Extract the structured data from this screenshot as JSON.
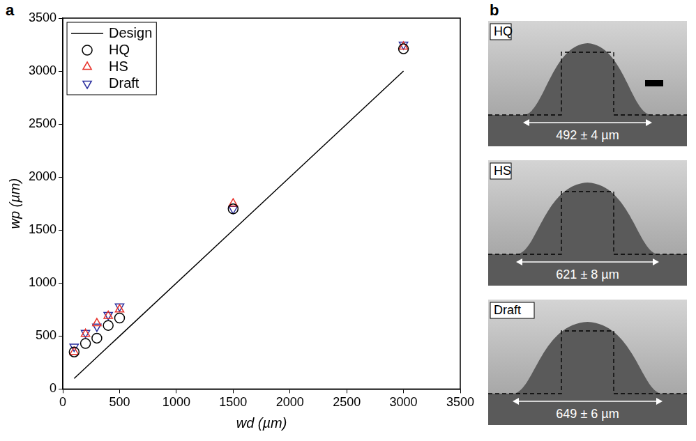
{
  "chart_data": {
    "type": "scatter",
    "x_label": "wd (µm)",
    "y_label": "wp (µm)",
    "x": [
      100,
      200,
      300,
      400,
      500,
      1500,
      3000
    ],
    "series": [
      {
        "name": "Design",
        "type": "line",
        "marker": "none",
        "line_style": "solid",
        "color": "#000000",
        "values": [
          100,
          200,
          300,
          400,
          500,
          1500,
          3000
        ]
      },
      {
        "name": "HQ",
        "type": "scatter",
        "marker": "circle",
        "color": "#000000",
        "values": [
          350,
          430,
          480,
          600,
          670,
          1700,
          3210
        ]
      },
      {
        "name": "HS",
        "type": "scatter",
        "marker": "triangle-up",
        "color": "#e8312a",
        "values": [
          350,
          520,
          620,
          690,
          750,
          1750,
          3230
        ]
      },
      {
        "name": "Draft",
        "type": "scatter",
        "marker": "triangle-down",
        "color": "#2b2f9e",
        "values": [
          400,
          530,
          590,
          700,
          780,
          1700,
          3250
        ]
      }
    ],
    "xlim": [
      0,
      3500
    ],
    "xticks": [
      0,
      500,
      1000,
      1500,
      2000,
      2500,
      3000,
      3500
    ],
    "ylim": [
      0,
      3500
    ],
    "yticks": [
      0,
      500,
      1000,
      1500,
      2000,
      2500,
      3000,
      3500
    ],
    "grid": false,
    "legend": "top-left"
  },
  "panel_letters": [
    "a",
    "b"
  ],
  "micrographs": [
    {
      "label": "HQ",
      "width_text": "492 ± 4 µm"
    },
    {
      "label": "HS",
      "width_text": "621 ± 8 µm"
    },
    {
      "label": "Draft",
      "width_text": "649 ± 6 µm"
    }
  ]
}
